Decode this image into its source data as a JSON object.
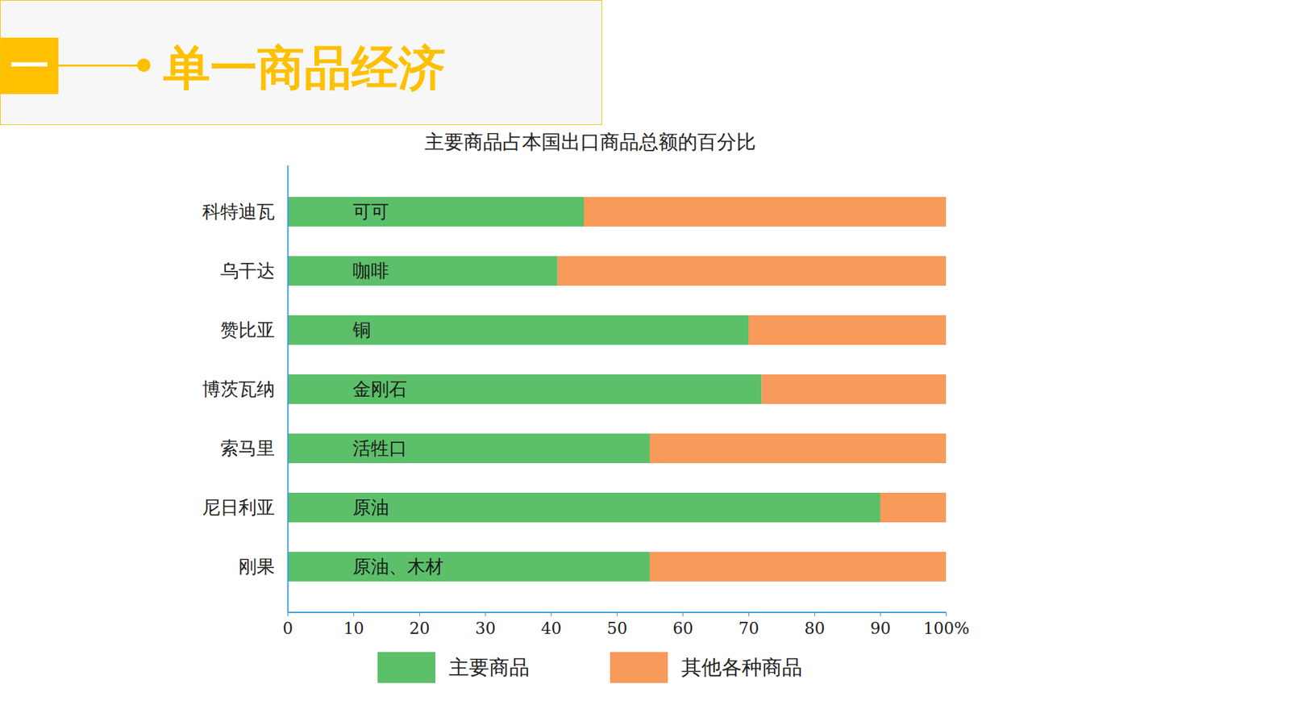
{
  "header": {
    "number": "一",
    "title": "单一商品经济"
  },
  "chart_data": {
    "type": "bar",
    "orientation": "horizontal",
    "stacked": true,
    "title": "主要商品占本国出口商品总额的百分比",
    "categories": [
      "科特迪瓦",
      "乌干达",
      "赞比亚",
      "博茨瓦纳",
      "索马里",
      "尼日利亚",
      "刚果"
    ],
    "series": [
      {
        "name": "主要商品",
        "color": "#5cbf6a",
        "values": [
          45,
          41,
          70,
          72,
          55,
          90,
          55
        ],
        "labels": [
          "可可",
          "咖啡",
          "铜",
          "金刚石",
          "活牲口",
          "原油",
          "原油、木材"
        ]
      },
      {
        "name": "其他各种商品",
        "color": "#f79a5a",
        "values": [
          55,
          59,
          30,
          28,
          45,
          10,
          45
        ]
      }
    ],
    "xlim": [
      0,
      100
    ],
    "xticks": [
      0,
      10,
      20,
      30,
      40,
      50,
      60,
      70,
      80,
      90,
      {
        "value": 100,
        "label": "100%"
      }
    ],
    "grid": false,
    "legend": "bottom"
  }
}
